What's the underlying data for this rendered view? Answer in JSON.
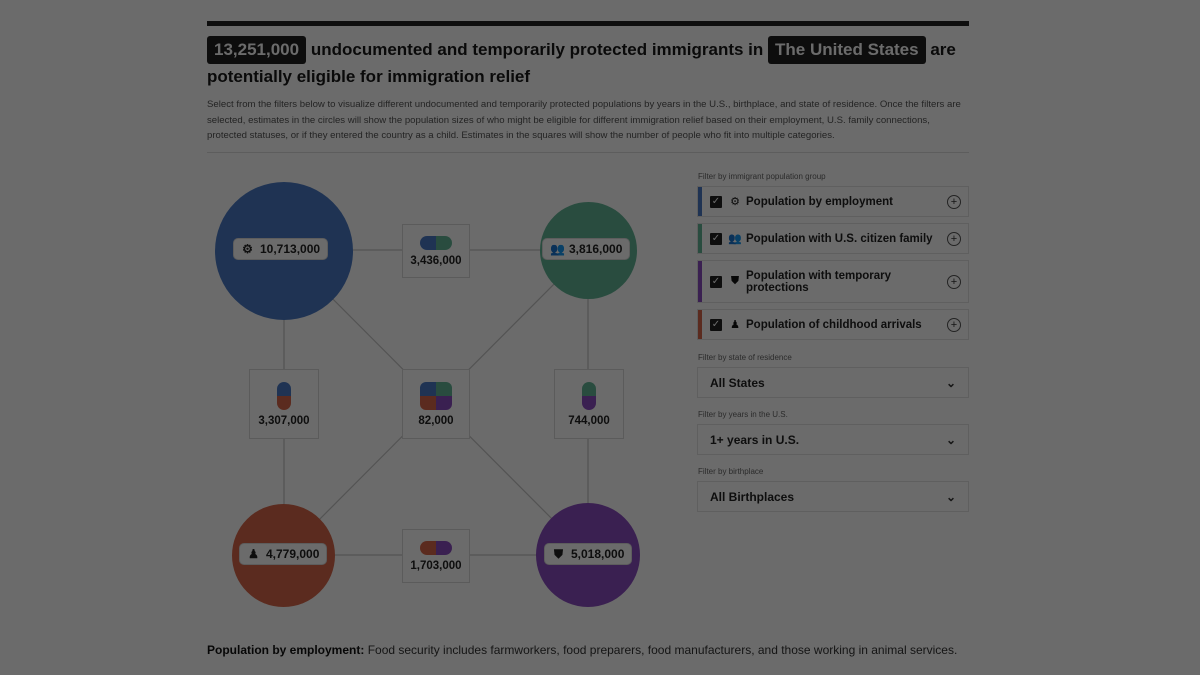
{
  "headline": {
    "count": "13,251,000",
    "text_a": "undocumented and temporarily protected immigrants in",
    "place": "The United States",
    "text_b": "are potentially eligible for immigration relief"
  },
  "intro": "Select from the filters below to visualize different undocumented and temporarily protected populations by years in the U.S., birthplace, and state of residence. Once the filters are selected, estimates in the circles will show the population sizes of who might be eligible for different immigration relief based on their employment, U.S. family connections, protected statuses, or if they entered the country as a child. Estimates in the squares will show the number of people who fit into multiple categories.",
  "diagram": {
    "circles": {
      "employment": {
        "value": "10,713,000",
        "icon": "gear-icon",
        "color": "#4b7bc6"
      },
      "family": {
        "value": "3,816,000",
        "icon": "family-icon",
        "color": "#62b596"
      },
      "childhood": {
        "value": "4,779,000",
        "icon": "child-icon",
        "color": "#d9684a"
      },
      "protections": {
        "value": "5,018,000",
        "icon": "shield-icon",
        "color": "#8a4cc0"
      }
    },
    "overlaps": {
      "employment_family": "3,436,000",
      "employment_childhood": "3,307,000",
      "all_four": "82,000",
      "family_protections": "744,000",
      "childhood_protections": "1,703,000"
    }
  },
  "filters": {
    "group_label": "Filter by immigrant population group",
    "groups": [
      {
        "label": "Population by employment",
        "icon": "gear-icon",
        "color": "#4b7bc6",
        "checked": true
      },
      {
        "label": "Population with U.S. citizen family",
        "icon": "family-icon",
        "color": "#62b596",
        "checked": true
      },
      {
        "label": "Population with temporary protections",
        "icon": "shield-icon",
        "color": "#8a4cc0",
        "checked": true
      },
      {
        "label": "Population of childhood arrivals",
        "icon": "child-icon",
        "color": "#d9684a",
        "checked": true
      }
    ],
    "state_label": "Filter by state of residence",
    "state_value": "All States",
    "years_label": "Filter by years in the U.S.",
    "years_value": "1+ years in U.S.",
    "birthplace_label": "Filter by birthplace",
    "birthplace_value": "All Birthplaces"
  },
  "footnote": {
    "label": "Population by employment:",
    "text": "Food security includes farmworkers, food preparers, food manufacturers, and those working in animal services."
  }
}
